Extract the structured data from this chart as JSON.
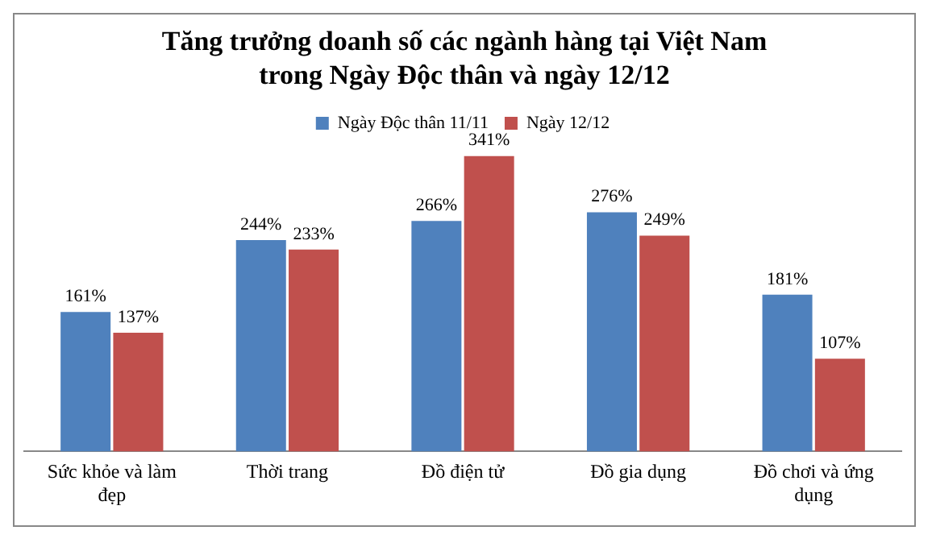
{
  "chart_data": {
    "type": "bar",
    "title": "Tăng trưởng doanh số các ngành hàng tại Việt Nam trong Ngày Độc thân và ngày 12/12",
    "categories": [
      "Sức khỏe và làm đẹp",
      "Thời trang",
      "Đồ điện tử",
      "Đồ gia dụng",
      "Đồ chơi và ứng dụng"
    ],
    "series": [
      {
        "name": "Ngày Độc thân 11/11",
        "color": "#4f81bd",
        "values": [
          161,
          244,
          266,
          276,
          181
        ],
        "value_labels": [
          "161%",
          "244%",
          "266%",
          "276%",
          "181%"
        ]
      },
      {
        "name": "Ngày 12/12",
        "color": "#c0504d",
        "values": [
          137,
          233,
          341,
          249,
          107
        ],
        "value_labels": [
          "137%",
          "233%",
          "341%",
          "249%",
          "107%"
        ]
      }
    ],
    "legend": "top",
    "grid": false
  }
}
